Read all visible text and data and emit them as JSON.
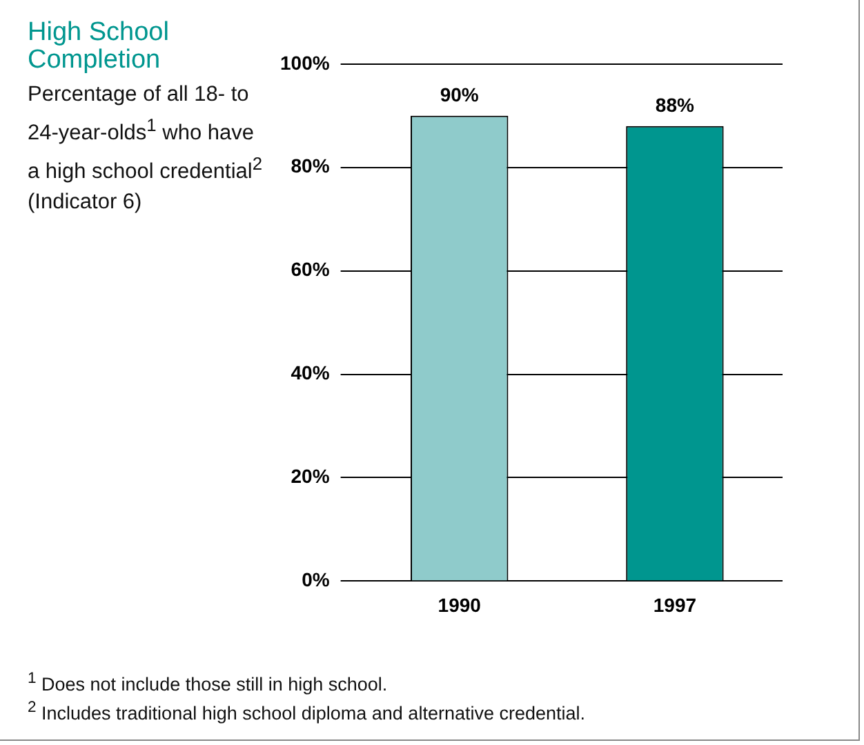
{
  "chart_data": {
    "type": "bar",
    "title": "High School Completion",
    "subtitle": "Percentage of all 18- to 24-year-olds$^{1}$ who have a high school credential$^{2}$ (Indicator 6)",
    "categories": [
      "1990",
      "1997"
    ],
    "values": [
      90,
      88
    ],
    "colors": [
      "#8fcbcb",
      "#00968f"
    ],
    "value_labels": [
      "90%",
      "88%"
    ],
    "ylim": [
      0,
      100
    ],
    "yticks": [
      {
        "value": 0,
        "label": "0%"
      },
      {
        "value": 20,
        "label": "20%"
      },
      {
        "value": 40,
        "label": "40%"
      },
      {
        "value": 60,
        "label": "60%"
      },
      {
        "value": 80,
        "label": "80%"
      },
      {
        "value": 100,
        "label": "100%"
      }
    ],
    "grid": "y",
    "legend": false,
    "annotations": [
      "$^{1}$ Does not include those still in high school.",
      "$^{2}$ Includes traditional high school diploma and alternative credential."
    ]
  }
}
